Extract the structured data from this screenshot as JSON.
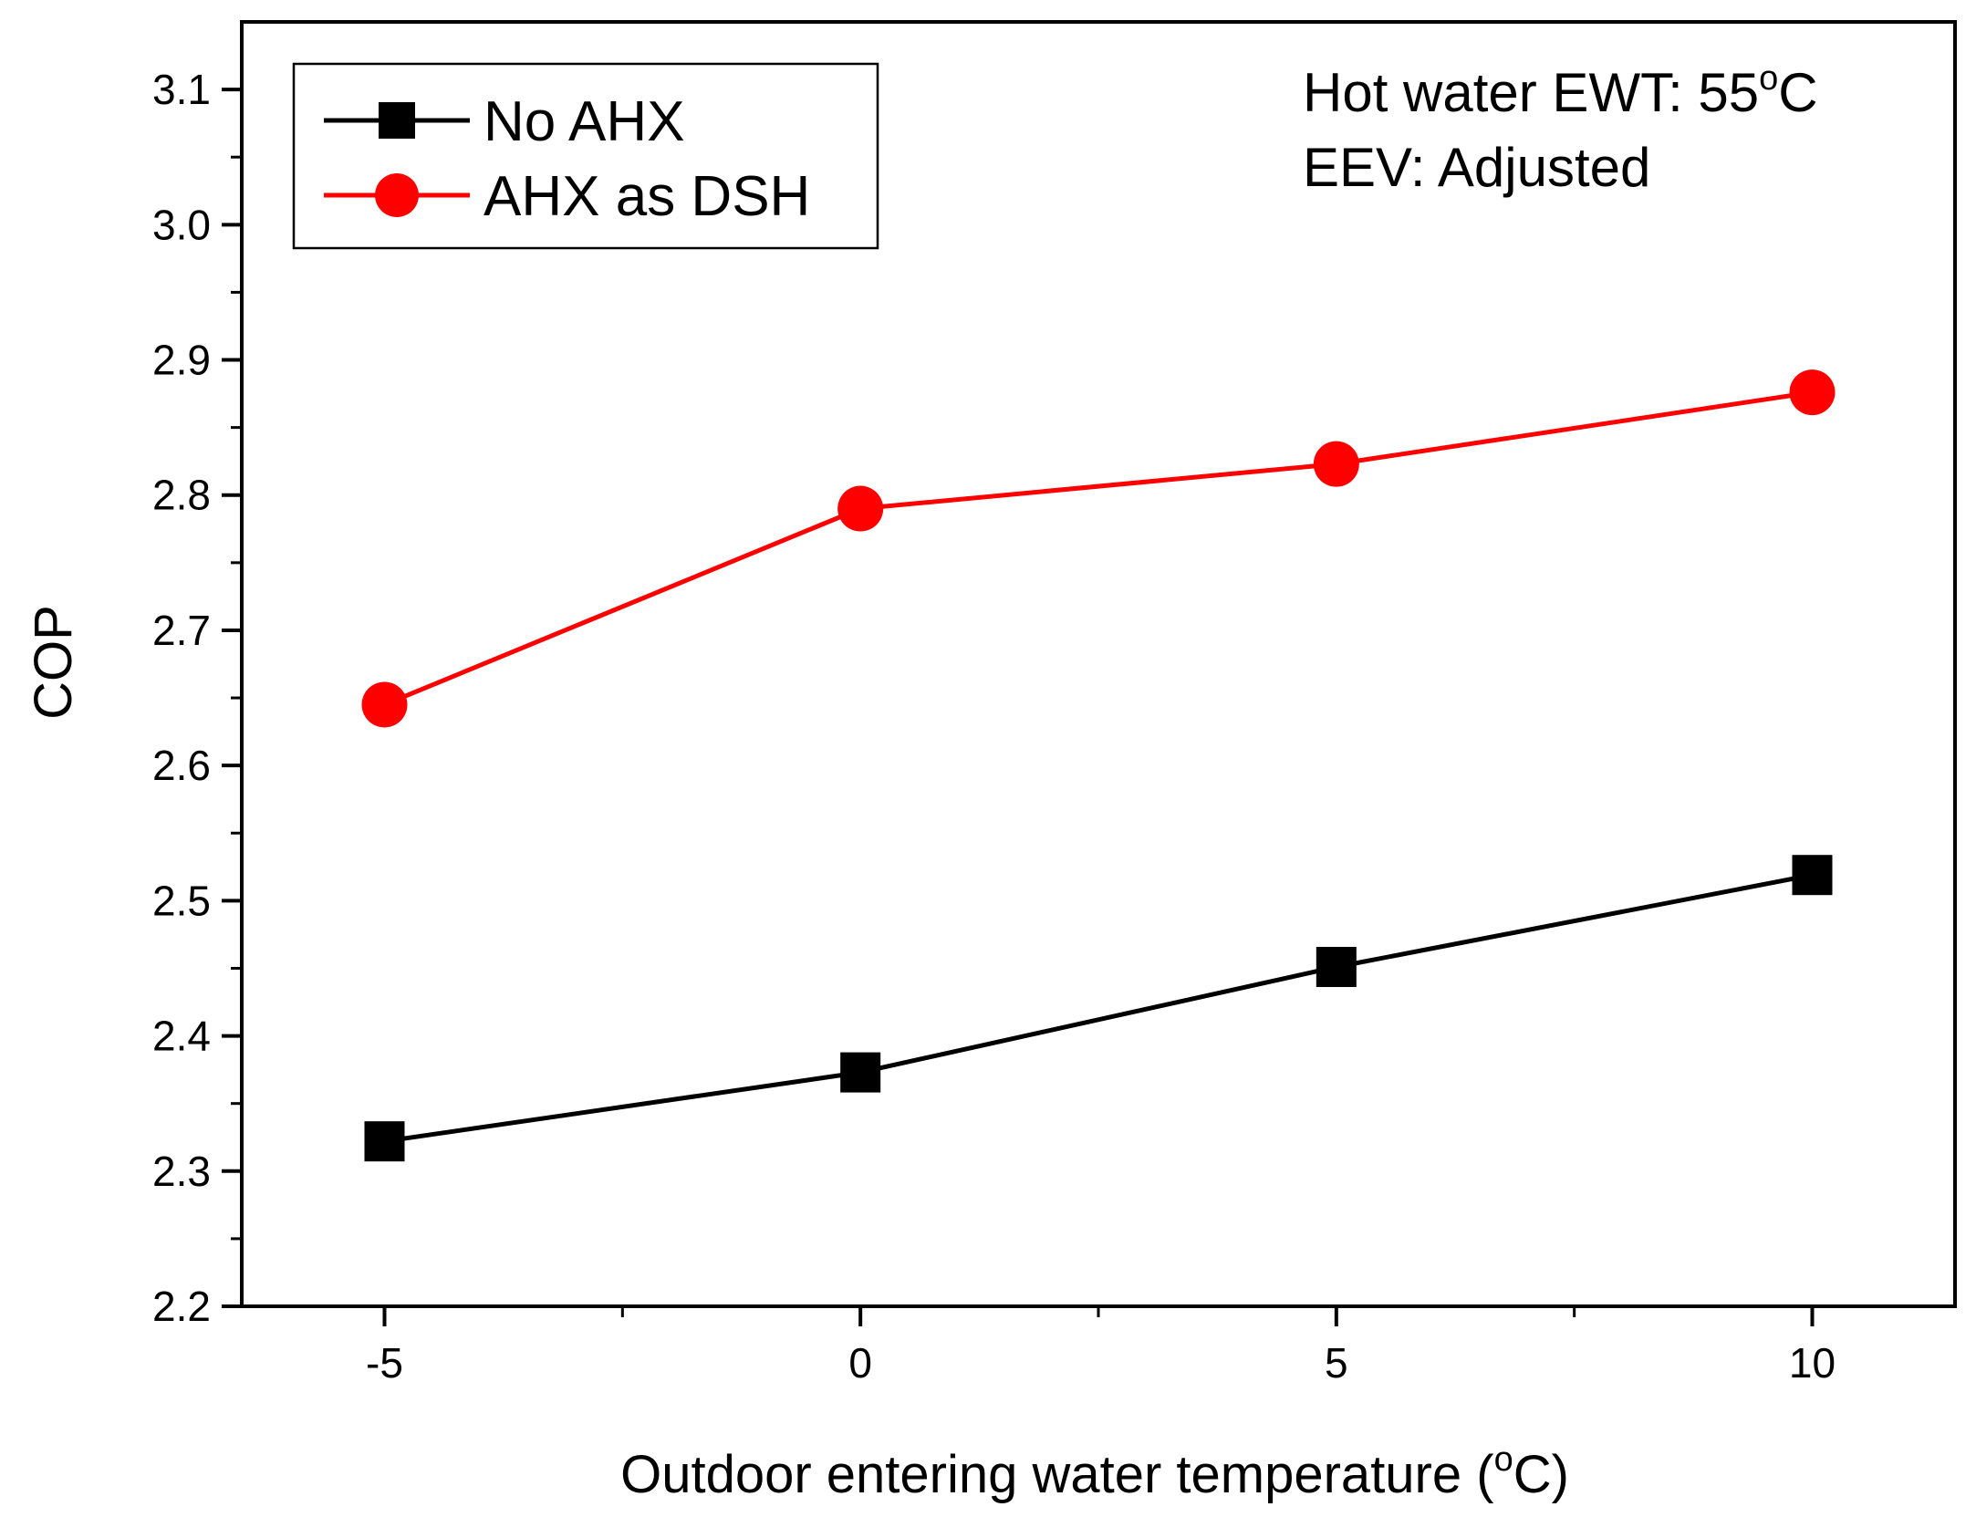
{
  "chart_data": {
    "type": "line",
    "title": "",
    "xlabel": "Outdoor entering water temperature (",
    "xlabel_unit_sup": "o",
    "xlabel_unit_tail": "C)",
    "ylabel": "COP",
    "x": [
      -5,
      0,
      5,
      10
    ],
    "xlim": [
      -6.5,
      11.5
    ],
    "ylim": [
      2.2,
      3.15
    ],
    "xticks": [
      -5,
      0,
      5,
      10
    ],
    "xtick_labels": [
      "-5",
      "0",
      "5",
      "10"
    ],
    "xticks_minor": [
      -2.5,
      2.5,
      7.5
    ],
    "yticks": [
      2.2,
      2.3,
      2.4,
      2.5,
      2.6,
      2.7,
      2.8,
      2.9,
      3.0,
      3.1
    ],
    "ytick_labels": [
      "2.2",
      "2.3",
      "2.4",
      "2.5",
      "2.6",
      "2.7",
      "2.8",
      "2.9",
      "3.0",
      "3.1"
    ],
    "yticks_minor": [
      2.25,
      2.35,
      2.45,
      2.55,
      2.65,
      2.75,
      2.85,
      2.95,
      3.05
    ],
    "grid": false,
    "legend_position": "top-left",
    "series": [
      {
        "name": "No AHX",
        "color": "#000000",
        "marker": "square",
        "values": [
          2.322,
          2.373,
          2.451,
          2.519
        ]
      },
      {
        "name": "AHX as DSH",
        "color": "#ff0000",
        "marker": "circle",
        "values": [
          2.645,
          2.79,
          2.823,
          2.876
        ]
      }
    ],
    "annotations": {
      "line1_prefix": "Hot water EWT: 55",
      "line1_sup": "o",
      "line1_suffix": "C",
      "line2": "EEV: Adjusted"
    }
  }
}
